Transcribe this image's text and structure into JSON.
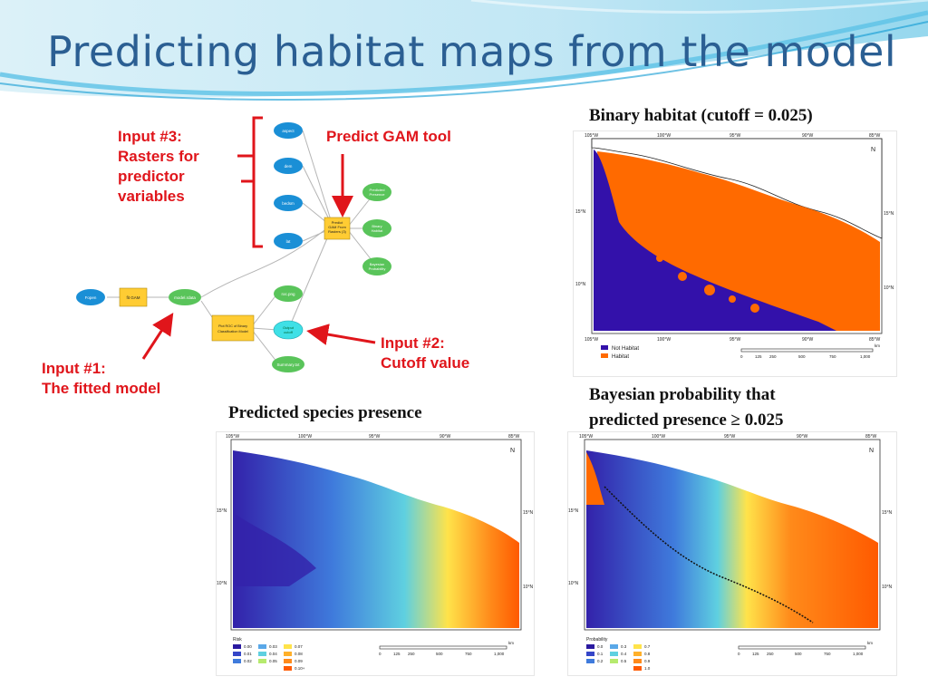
{
  "slide": {
    "title": "Predicting habitat maps from the model"
  },
  "colors": {
    "title": "#2b5f93",
    "annotation_red": "#e0151b",
    "habitat_orange": "#ff6a00",
    "not_habitat_purple": "#3311aa",
    "node_blue": "#1a8fd6",
    "node_green": "#59c45a",
    "node_yellow": "#ffcc33"
  },
  "annotations": {
    "input3": [
      "Input #3:",
      "Rasters for",
      "predictor",
      "variables"
    ],
    "predict_tool": "Predict GAM tool",
    "input2": [
      "Input #2:",
      "Cutoff value"
    ],
    "input1": [
      "Input #1:",
      "The fitted model"
    ]
  },
  "workflow": {
    "inputs": [
      "aspect",
      "dem",
      "bedsm",
      "lat"
    ],
    "fitted_chain": [
      "Fopen",
      "fit GAM",
      "model.rdata"
    ],
    "predict_tool": [
      "Predict",
      "GAM From",
      "Rasters (3)"
    ],
    "outputs": [
      [
        "Predicted",
        "Presence"
      ],
      [
        "Binary",
        "Habitat"
      ],
      [
        "Bayesian",
        "Probability"
      ]
    ],
    "roc_tool": [
      "Plot ROC of Binary",
      "Classification Model"
    ],
    "roc_outputs": [
      "roc.png",
      "Output",
      "cutoff",
      "Summary.txt"
    ]
  },
  "panels": {
    "binary": {
      "title": "Binary habitat (cutoff = 0.025)",
      "lon_labels": [
        "105°W",
        "100°W",
        "95°W",
        "90°W",
        "85°W"
      ],
      "lon_labels_bottom": [
        "105°W",
        "100°W",
        "95°W",
        "90°W",
        "85°W"
      ],
      "lat_left": [
        "15°N",
        "10°N"
      ],
      "lat_right": [
        "15°N",
        "10°N"
      ],
      "legend": [
        "Not Habitat",
        "Habitat"
      ],
      "scale": [
        "0",
        "125",
        "250",
        "500",
        "750",
        "1,000"
      ],
      "scale_unit": "km",
      "north": "N"
    },
    "predicted": {
      "title": "Predicted species presence",
      "lon_labels": [
        "105°W",
        "100°W",
        "95°W",
        "90°W",
        "85°W"
      ],
      "lat_left": [
        "15°N",
        "10°N"
      ],
      "lat_right": [
        "15°N",
        "10°N"
      ],
      "legend_title": "Risk",
      "legend_values": [
        "0.00",
        "0.01",
        "0.02",
        "0.03",
        "0.04",
        "0.05",
        "0.07",
        "0.08",
        "0.09",
        "0.10+"
      ],
      "scale": [
        "0",
        "125",
        "250",
        "500",
        "750",
        "1,000"
      ],
      "scale_unit": "km",
      "north": "N"
    },
    "bayesian": {
      "title_lines": [
        "Bayesian probability that",
        "predicted presence ≥ 0.025"
      ],
      "lon_labels": [
        "105°W",
        "100°W",
        "95°W",
        "90°W",
        "85°W"
      ],
      "lat_left": [
        "15°N",
        "10°N"
      ],
      "lat_right": [
        "15°N",
        "10°N"
      ],
      "legend_title": "Probability",
      "legend_values": [
        "0.0",
        "0.1",
        "0.2",
        "0.3",
        "0.4",
        "0.5",
        "0.7",
        "0.8",
        "0.9",
        "1.0"
      ],
      "scale": [
        "0",
        "125",
        "250",
        "500",
        "750",
        "1,000"
      ],
      "scale_unit": "km",
      "north": "N"
    }
  }
}
